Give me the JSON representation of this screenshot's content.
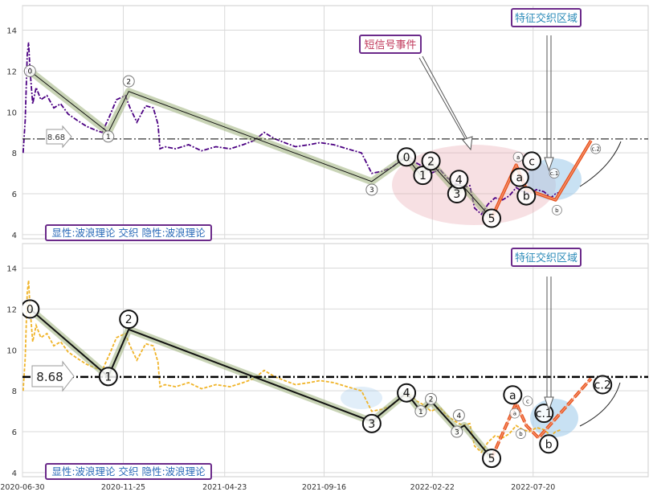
{
  "chart_data": [
    {
      "type": "line",
      "xaxis": {
        "min": "2020-06-30",
        "max": "2023-01-05",
        "ticks": [
          "2020-06-30",
          "2020-11-25",
          "2021-04-23",
          "2021-09-16",
          "2022-02-22",
          "2022-07-20"
        ]
      },
      "yaxis": {
        "range": [
          3.8,
          15.2
        ],
        "ticks": [
          4,
          6,
          8,
          10,
          12,
          14
        ]
      },
      "grid": true,
      "price_color": "#4b0082",
      "price_style": "dash-dot",
      "price_series": [
        [
          "2020-07-01",
          8.0
        ],
        [
          "2020-07-04",
          9.6
        ],
        [
          "2020-07-07",
          12.8
        ],
        [
          "2020-07-09",
          13.4
        ],
        [
          "2020-07-11",
          12.1
        ],
        [
          "2020-07-15",
          10.4
        ],
        [
          "2020-07-20",
          11.2
        ],
        [
          "2020-07-27",
          10.6
        ],
        [
          "2020-08-05",
          10.8
        ],
        [
          "2020-08-15",
          10.2
        ],
        [
          "2020-08-25",
          10.4
        ],
        [
          "2020-09-05",
          9.9
        ],
        [
          "2020-09-18",
          9.6
        ],
        [
          "2020-10-02",
          9.3
        ],
        [
          "2020-10-16",
          9.1
        ],
        [
          "2020-10-25",
          9.0
        ],
        [
          "2020-11-05",
          9.8
        ],
        [
          "2020-11-15",
          10.6
        ],
        [
          "2020-11-28",
          10.8
        ],
        [
          "2020-12-05",
          10.2
        ],
        [
          "2020-12-15",
          9.5
        ],
        [
          "2020-12-28",
          10.3
        ],
        [
          "2021-01-08",
          10.2
        ],
        [
          "2021-01-15",
          9.4
        ],
        [
          "2021-01-18",
          8.2
        ],
        [
          "2021-01-25",
          8.3
        ],
        [
          "2021-02-10",
          8.2
        ],
        [
          "2021-03-01",
          8.4
        ],
        [
          "2021-03-20",
          8.1
        ],
        [
          "2021-04-10",
          8.3
        ],
        [
          "2021-05-01",
          8.2
        ],
        [
          "2021-05-20",
          8.4
        ],
        [
          "2021-06-05",
          8.6
        ],
        [
          "2021-06-20",
          9.0
        ],
        [
          "2021-07-05",
          8.7
        ],
        [
          "2021-07-20",
          8.5
        ],
        [
          "2021-08-05",
          8.3
        ],
        [
          "2021-08-25",
          8.4
        ],
        [
          "2021-09-10",
          8.5
        ],
        [
          "2021-09-30",
          8.4
        ],
        [
          "2021-10-20",
          8.2
        ],
        [
          "2021-11-10",
          8.0
        ],
        [
          "2021-11-25",
          7.0
        ],
        [
          "2021-12-10",
          7.1
        ],
        [
          "2021-12-25",
          7.3
        ],
        [
          "2022-01-08",
          7.7
        ],
        [
          "2022-01-20",
          7.8
        ],
        [
          "2022-01-30",
          7.5
        ],
        [
          "2022-02-10",
          7.3
        ],
        [
          "2022-02-20",
          7.0
        ],
        [
          "2022-03-05",
          7.2
        ],
        [
          "2022-03-15",
          6.8
        ],
        [
          "2022-03-28",
          6.5
        ],
        [
          "2022-04-08",
          6.3
        ],
        [
          "2022-04-18",
          6.4
        ],
        [
          "2022-04-25",
          5.3
        ],
        [
          "2022-05-05",
          5.0
        ],
        [
          "2022-05-15",
          5.5
        ],
        [
          "2022-05-25",
          5.8
        ],
        [
          "2022-06-05",
          5.7
        ],
        [
          "2022-06-15",
          5.9
        ],
        [
          "2022-06-25",
          6.3
        ],
        [
          "2022-07-05",
          6.1
        ],
        [
          "2022-07-15",
          6.0
        ],
        [
          "2022-07-25",
          6.2
        ],
        [
          "2022-08-05",
          6.1
        ],
        [
          "2022-08-15",
          5.8
        ],
        [
          "2022-08-22",
          6.0
        ],
        [
          "2022-08-30",
          6.1
        ]
      ],
      "series": [
        {
          "name": "显性:波浪理论",
          "points": [
            [
              "2020-07-11",
              12.0
            ],
            [
              "2020-11-03",
              9.0
            ],
            [
              "2020-12-03",
              11.0
            ],
            [
              "2021-11-25",
              6.6
            ],
            [
              "2022-01-15",
              7.8
            ],
            [
              "2022-02-05",
              6.9
            ],
            [
              "2022-02-20",
              7.5
            ],
            [
              "2022-03-30",
              6.1
            ],
            [
              "2022-04-10",
              6.3
            ],
            [
              "2022-05-20",
              4.8
            ]
          ]
        },
        {
          "name": "隐性:波浪理论",
          "points": [
            [
              "2022-05-20",
              4.8
            ],
            [
              "2022-06-25",
              7.4
            ],
            [
              "2022-07-10",
              6.2
            ],
            [
              "2022-08-22",
              5.7
            ],
            [
              "2022-10-13",
              8.6
            ]
          ]
        }
      ],
      "hline": {
        "value": 8.68,
        "label": "8.68"
      },
      "wave_labels": [
        {
          "text": "0",
          "x": "2020-07-11",
          "y": 12.0,
          "size": "small"
        },
        {
          "text": "1",
          "x": "2020-11-03",
          "y": 8.8,
          "size": "small"
        },
        {
          "text": "2",
          "x": "2020-12-03",
          "y": 11.5,
          "size": "small"
        },
        {
          "text": "3",
          "x": "2021-11-25",
          "y": 6.2,
          "size": "small"
        },
        {
          "text": "0",
          "x": "2022-01-15",
          "y": 7.8,
          "size": "big"
        },
        {
          "text": "1",
          "x": "2022-02-08",
          "y": 6.9,
          "size": "big"
        },
        {
          "text": "2",
          "x": "2022-02-20",
          "y": 7.6,
          "size": "big"
        },
        {
          "text": "3",
          "x": "2022-03-30",
          "y": 6.0,
          "size": "big"
        },
        {
          "text": "4",
          "x": "2022-04-02",
          "y": 6.7,
          "size": "big"
        },
        {
          "text": "5",
          "x": "2022-05-20",
          "y": 4.8,
          "size": "big"
        },
        {
          "text": "a",
          "x": "2022-06-30",
          "y": 6.8,
          "size": "big"
        },
        {
          "text": "b",
          "x": "2022-07-10",
          "y": 5.9,
          "size": "big"
        },
        {
          "text": "c",
          "x": "2022-07-18",
          "y": 7.6,
          "size": "big"
        },
        {
          "text": "a",
          "x": "2022-06-28",
          "y": 7.8,
          "size": "tiny"
        },
        {
          "text": "c.1",
          "x": "2022-08-20",
          "y": 7.0,
          "size": "tiny"
        },
        {
          "text": "b",
          "x": "2022-08-24",
          "y": 5.2,
          "size": "tiny"
        },
        {
          "text": "c.2",
          "x": "2022-10-20",
          "y": 8.2,
          "size": "tiny"
        }
      ],
      "annotations": [
        {
          "text": "短信号事件",
          "color": "#c0395b"
        },
        {
          "text": "特征交织区域",
          "color": "#2a8ab8"
        },
        {
          "text": "显性:波浪理论 交织 隐性:波浪理论",
          "color": "#2a6ab8"
        }
      ]
    },
    {
      "type": "line",
      "xaxis": {
        "min": "2020-06-30",
        "max": "2023-01-05",
        "ticks": [
          "2020-06-30",
          "2020-11-25",
          "2021-04-23",
          "2021-09-16",
          "2022-02-22",
          "2022-07-20"
        ]
      },
      "yaxis": {
        "range": [
          3.8,
          15.2
        ],
        "ticks": [
          4,
          6,
          8,
          10,
          12,
          14
        ]
      },
      "grid": true,
      "price_color": "#f0b429",
      "price_style": "dash",
      "series": [
        {
          "name": "显性:波浪理论",
          "points": [
            [
              "2020-07-11",
              12.0
            ],
            [
              "2020-11-03",
              8.7
            ],
            [
              "2020-12-03",
              11.0
            ],
            [
              "2021-11-25",
              6.5
            ],
            [
              "2022-01-15",
              7.9
            ],
            [
              "2022-02-05",
              7.0
            ],
            [
              "2022-02-20",
              7.5
            ],
            [
              "2022-03-30",
              6.1
            ],
            [
              "2022-04-10",
              6.3
            ],
            [
              "2022-05-20",
              4.7
            ]
          ]
        },
        {
          "name": "隐性:波浪理论",
          "points": [
            [
              "2022-05-20",
              4.7
            ],
            [
              "2022-06-25",
              7.4
            ],
            [
              "2022-07-10",
              6.3
            ],
            [
              "2022-07-28",
              5.7
            ],
            [
              "2022-10-13",
              8.6
            ]
          ]
        }
      ],
      "hline": {
        "value": 8.68,
        "label": "8.68"
      },
      "wave_labels": [
        {
          "text": "0",
          "x": "2020-07-11",
          "y": 12.0,
          "size": "big"
        },
        {
          "text": "1",
          "x": "2020-11-03",
          "y": 8.7,
          "size": "big"
        },
        {
          "text": "2",
          "x": "2020-12-03",
          "y": 11.5,
          "size": "big"
        },
        {
          "text": "3",
          "x": "2021-11-25",
          "y": 6.4,
          "size": "big"
        },
        {
          "text": "4",
          "x": "2022-01-15",
          "y": 7.9,
          "size": "big"
        },
        {
          "text": "1",
          "x": "2022-02-05",
          "y": 7.0,
          "size": "small"
        },
        {
          "text": "2",
          "x": "2022-02-20",
          "y": 7.6,
          "size": "small"
        },
        {
          "text": "3",
          "x": "2022-03-30",
          "y": 6.0,
          "size": "small"
        },
        {
          "text": "4",
          "x": "2022-04-02",
          "y": 6.8,
          "size": "small"
        },
        {
          "text": "5",
          "x": "2022-05-20",
          "y": 4.7,
          "size": "big"
        },
        {
          "text": "a",
          "x": "2022-06-20",
          "y": 7.8,
          "size": "big"
        },
        {
          "text": "c.1",
          "x": "2022-08-05",
          "y": 6.9,
          "size": "big"
        },
        {
          "text": "b",
          "x": "2022-08-12",
          "y": 5.4,
          "size": "big"
        },
        {
          "text": "c.2",
          "x": "2022-10-30",
          "y": 8.3,
          "size": "big"
        },
        {
          "text": "a",
          "x": "2022-06-23",
          "y": 6.9,
          "size": "tiny"
        },
        {
          "text": "b",
          "x": "2022-07-02",
          "y": 5.9,
          "size": "tiny"
        },
        {
          "text": "c",
          "x": "2022-07-12",
          "y": 7.5,
          "size": "tiny"
        }
      ],
      "annotations": [
        {
          "text": "特征交织区域",
          "color": "#2a8ab8"
        },
        {
          "text": "显性:波浪理论 交织 隐性:波浪理论",
          "color": "#2a6ab8"
        }
      ]
    }
  ]
}
